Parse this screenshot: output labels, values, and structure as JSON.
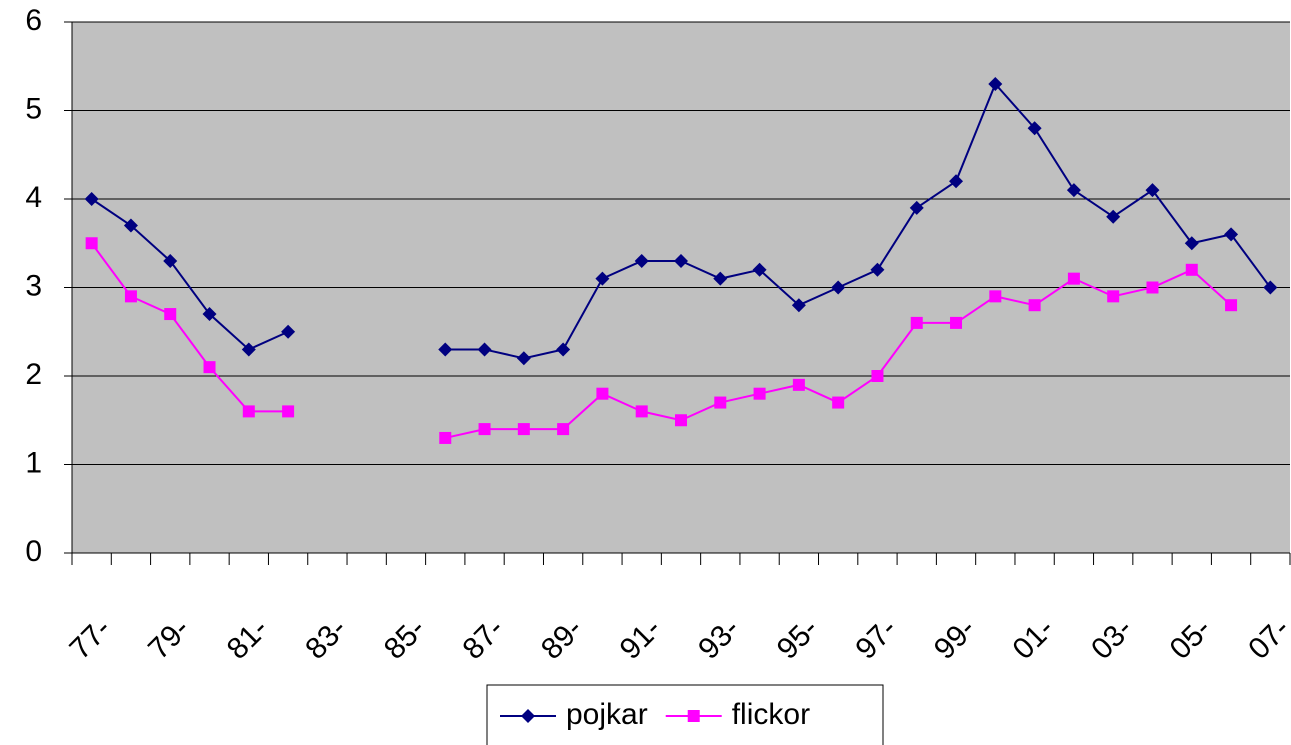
{
  "chart_data": {
    "type": "line",
    "categories": [
      "77-",
      null,
      "79-",
      null,
      "81-",
      null,
      "83-",
      null,
      "85-",
      null,
      "87-",
      null,
      "89-",
      null,
      "91-",
      null,
      "93-",
      null,
      "95-",
      null,
      "97-",
      null,
      "99-",
      null,
      "01-",
      null,
      "03-",
      null,
      "05-",
      null,
      "07-"
    ],
    "series": [
      {
        "name": "pojkar",
        "color": "#000080",
        "marker": "diamond",
        "values": [
          4.0,
          3.7,
          3.3,
          2.7,
          2.3,
          2.5,
          null,
          null,
          null,
          2.3,
          2.3,
          2.2,
          2.3,
          3.1,
          3.3,
          3.3,
          3.1,
          3.2,
          2.8,
          3.0,
          3.2,
          3.9,
          4.2,
          5.3,
          4.8,
          4.1,
          3.8,
          4.1,
          3.5,
          3.6,
          3.0
        ]
      },
      {
        "name": "flickor",
        "color": "#ff00ff",
        "marker": "square",
        "values": [
          3.5,
          2.9,
          2.7,
          2.1,
          1.6,
          1.6,
          null,
          null,
          null,
          1.3,
          1.4,
          1.4,
          1.4,
          1.8,
          1.6,
          1.5,
          1.7,
          1.8,
          1.9,
          1.7,
          2.0,
          2.6,
          2.6,
          2.9,
          2.8,
          3.1,
          2.9,
          3.0,
          3.2,
          2.8,
          null
        ]
      }
    ],
    "ylim": [
      0,
      6
    ],
    "yticks": [
      0,
      1,
      2,
      3,
      4,
      5,
      6
    ],
    "grid": true,
    "plot_background": "#c0c0c0",
    "legend": "bottom"
  }
}
